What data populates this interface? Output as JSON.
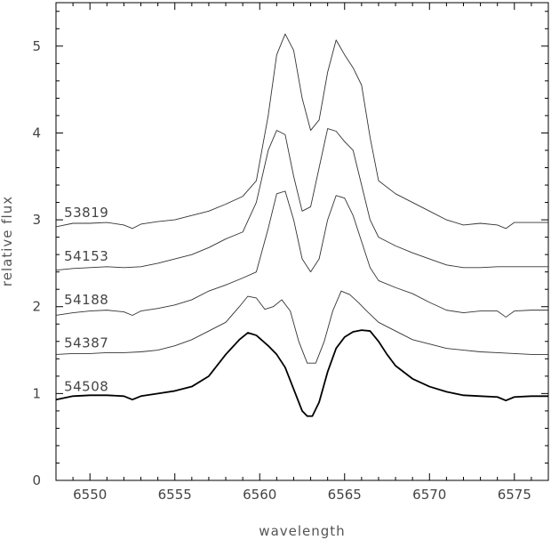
{
  "chart_data": {
    "type": "line",
    "title": "",
    "xlabel": "wavelength",
    "ylabel": "relative flux",
    "xlim": [
      6548,
      6577
    ],
    "ylim": [
      0,
      5.5
    ],
    "xticks": [
      6550,
      6555,
      6560,
      6565,
      6570,
      6575
    ],
    "yticks": [
      0,
      1,
      2,
      3,
      4,
      5
    ],
    "grid": false,
    "legend": "none",
    "series": [
      {
        "name": "53819",
        "label_at": [
          6549,
          3.06
        ],
        "x": [
          6548,
          6549,
          6550,
          6551,
          6552,
          6552.5,
          6553,
          6554,
          6555,
          6556,
          6557,
          6558,
          6559,
          6559.8,
          6560.5,
          6561,
          6561.5,
          6562,
          6562.5,
          6563,
          6563.5,
          6564,
          6564.5,
          6565,
          6565.5,
          6566,
          6566.5,
          6567,
          6568,
          6569,
          6570,
          6571,
          6572,
          6573,
          6574,
          6574.5,
          6575,
          6576,
          6577
        ],
        "y": [
          2.92,
          2.96,
          2.96,
          2.97,
          2.94,
          2.9,
          2.95,
          2.98,
          3.0,
          3.05,
          3.1,
          3.18,
          3.27,
          3.45,
          4.2,
          4.9,
          5.14,
          4.95,
          4.4,
          4.03,
          4.15,
          4.7,
          5.07,
          4.9,
          4.75,
          4.55,
          3.95,
          3.45,
          3.3,
          3.2,
          3.1,
          3.0,
          2.94,
          2.96,
          2.94,
          2.9,
          2.97,
          2.97,
          2.97
        ],
        "thick": false
      },
      {
        "name": "54153",
        "label_at": [
          6549,
          2.56
        ],
        "x": [
          6548,
          6549,
          6550,
          6551,
          6552,
          6553,
          6554,
          6555,
          6556,
          6557,
          6558,
          6559,
          6559.8,
          6560.5,
          6561,
          6561.5,
          6562,
          6562.5,
          6563,
          6563.5,
          6564,
          6564.5,
          6565,
          6565.5,
          6566,
          6566.5,
          6567,
          6568,
          6569,
          6570,
          6571,
          6572,
          6573,
          6574,
          6575,
          6576,
          6577
        ],
        "y": [
          2.42,
          2.44,
          2.45,
          2.46,
          2.45,
          2.46,
          2.5,
          2.55,
          2.6,
          2.68,
          2.78,
          2.86,
          3.2,
          3.8,
          4.03,
          3.98,
          3.5,
          3.1,
          3.15,
          3.6,
          4.05,
          4.02,
          3.9,
          3.8,
          3.4,
          3.0,
          2.8,
          2.7,
          2.62,
          2.55,
          2.48,
          2.45,
          2.45,
          2.46,
          2.46,
          2.46,
          2.46
        ],
        "thick": false
      },
      {
        "name": "54188",
        "label_at": [
          6549,
          2.06
        ],
        "x": [
          6548,
          6549,
          6550,
          6551,
          6552,
          6552.5,
          6553,
          6554,
          6555,
          6556,
          6557,
          6558,
          6559,
          6559.8,
          6560.5,
          6561,
          6561.5,
          6562,
          6562.5,
          6563,
          6563.5,
          6564,
          6564.5,
          6565,
          6565.5,
          6566,
          6566.5,
          6567,
          6568,
          6569,
          6570,
          6571,
          6572,
          6573,
          6574,
          6574.5,
          6575,
          6576,
          6577
        ],
        "y": [
          1.9,
          1.93,
          1.95,
          1.96,
          1.94,
          1.9,
          1.95,
          1.98,
          2.02,
          2.08,
          2.18,
          2.25,
          2.33,
          2.4,
          2.9,
          3.3,
          3.33,
          3.0,
          2.55,
          2.4,
          2.55,
          3.0,
          3.28,
          3.25,
          3.05,
          2.75,
          2.45,
          2.3,
          2.22,
          2.15,
          2.05,
          1.96,
          1.93,
          1.95,
          1.95,
          1.88,
          1.95,
          1.96,
          1.96
        ],
        "thick": false
      },
      {
        "name": "54387",
        "label_at": [
          6549,
          1.56
        ],
        "x": [
          6548,
          6549,
          6550,
          6551,
          6552,
          6553,
          6554,
          6555,
          6556,
          6557,
          6558,
          6558.8,
          6559.3,
          6559.8,
          6560.3,
          6560.8,
          6561.3,
          6561.8,
          6562.3,
          6562.8,
          6563.3,
          6563.8,
          6564.3,
          6564.8,
          6565.3,
          6565.8,
          6566.3,
          6567,
          6568,
          6569,
          6570,
          6571,
          6572,
          6573,
          6574,
          6575,
          6576,
          6577
        ],
        "y": [
          1.45,
          1.46,
          1.46,
          1.47,
          1.47,
          1.48,
          1.5,
          1.55,
          1.62,
          1.72,
          1.82,
          2.0,
          2.12,
          2.1,
          1.97,
          2.0,
          2.08,
          1.95,
          1.6,
          1.35,
          1.35,
          1.6,
          1.95,
          2.18,
          2.14,
          2.05,
          1.95,
          1.82,
          1.72,
          1.62,
          1.57,
          1.52,
          1.5,
          1.48,
          1.47,
          1.46,
          1.45,
          1.45
        ],
        "thick": false
      },
      {
        "name": "54508",
        "label_at": [
          6549,
          1.06
        ],
        "x": [
          6548,
          6549,
          6550,
          6551,
          6552,
          6552.5,
          6553,
          6554,
          6555,
          6556,
          6557,
          6558,
          6558.8,
          6559.3,
          6559.8,
          6560.5,
          6561,
          6561.5,
          6562,
          6562.5,
          6562.8,
          6563.1,
          6563.5,
          6564,
          6564.5,
          6565,
          6565.5,
          6566,
          6566.5,
          6567,
          6567.5,
          6568,
          6569,
          6570,
          6571,
          6572,
          6573,
          6574,
          6574.5,
          6575,
          6576,
          6577
        ],
        "y": [
          0.93,
          0.97,
          0.98,
          0.98,
          0.97,
          0.93,
          0.97,
          1.0,
          1.03,
          1.08,
          1.2,
          1.45,
          1.62,
          1.7,
          1.67,
          1.55,
          1.45,
          1.3,
          1.05,
          0.8,
          0.74,
          0.74,
          0.9,
          1.25,
          1.52,
          1.65,
          1.71,
          1.73,
          1.72,
          1.6,
          1.45,
          1.32,
          1.17,
          1.08,
          1.02,
          0.98,
          0.97,
          0.96,
          0.92,
          0.96,
          0.97,
          0.97
        ],
        "thick": true
      }
    ]
  }
}
